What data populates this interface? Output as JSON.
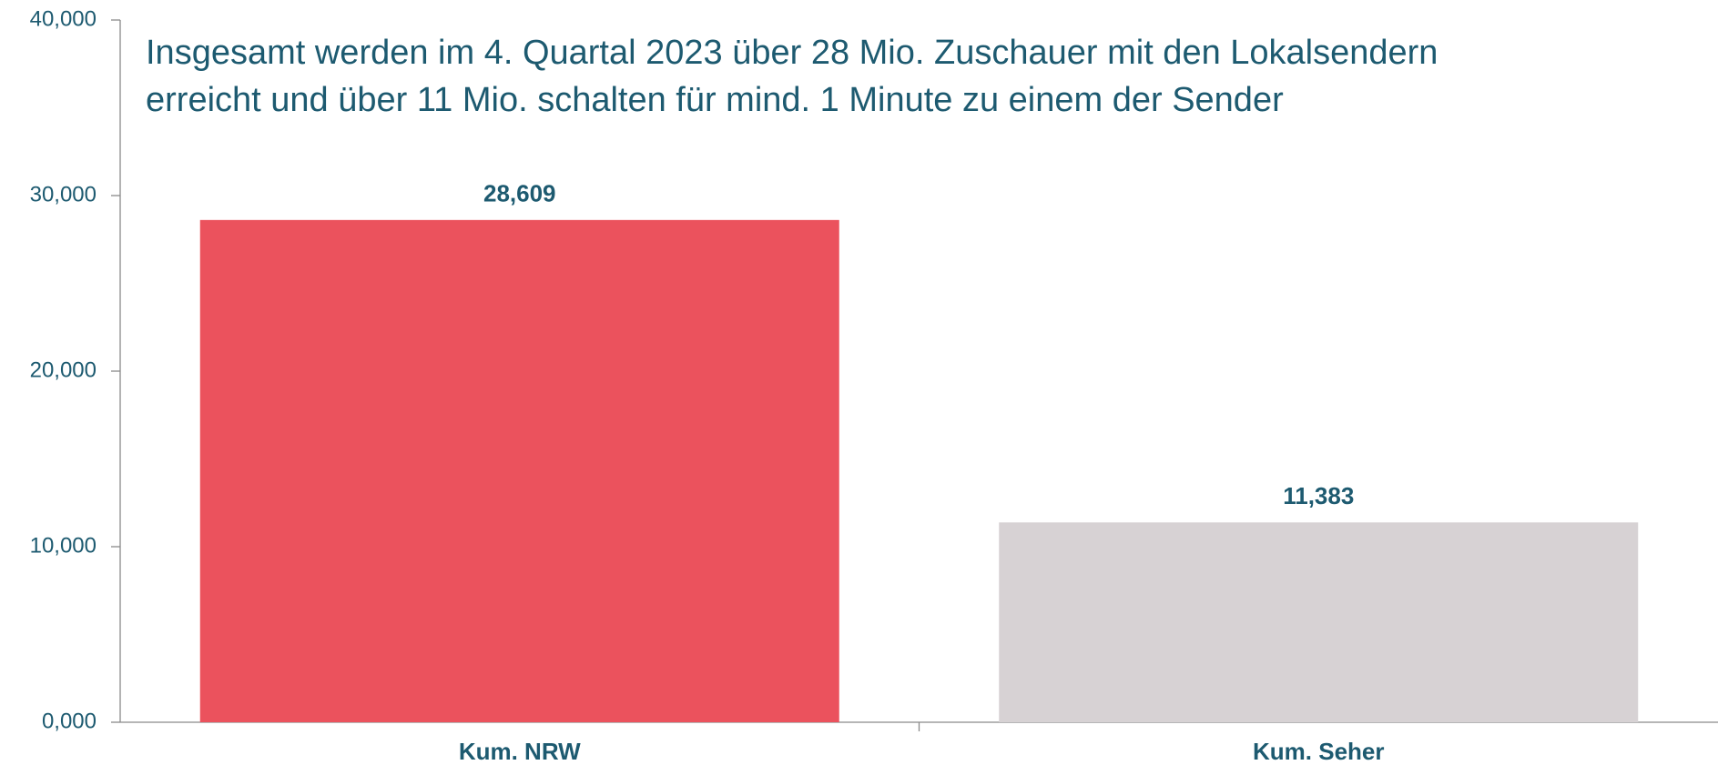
{
  "chart_data": {
    "type": "bar",
    "title": [
      "Insgesamt werden im 4. Quartal 2023 über 28 Mio. Zuschauer mit den Lokalsendern",
      "erreicht und über 11 Mio. schalten für mind. 1 Minute zu einem der Sender"
    ],
    "categories": [
      "Kum. NRW",
      "Kum. Seher"
    ],
    "values": [
      28609,
      11383
    ],
    "value_labels": [
      "28,609",
      "11,383"
    ],
    "colors": [
      "#eb525d",
      "#d7d2d4"
    ],
    "ylim": [
      0,
      40000
    ],
    "yticks": [
      {
        "value": 0,
        "label": "0,000"
      },
      {
        "value": 10000,
        "label": "10,000"
      },
      {
        "value": 20000,
        "label": "20,000"
      },
      {
        "value": 30000,
        "label": "30,000"
      },
      {
        "value": 40000,
        "label": "40,000"
      }
    ],
    "grid": false
  }
}
